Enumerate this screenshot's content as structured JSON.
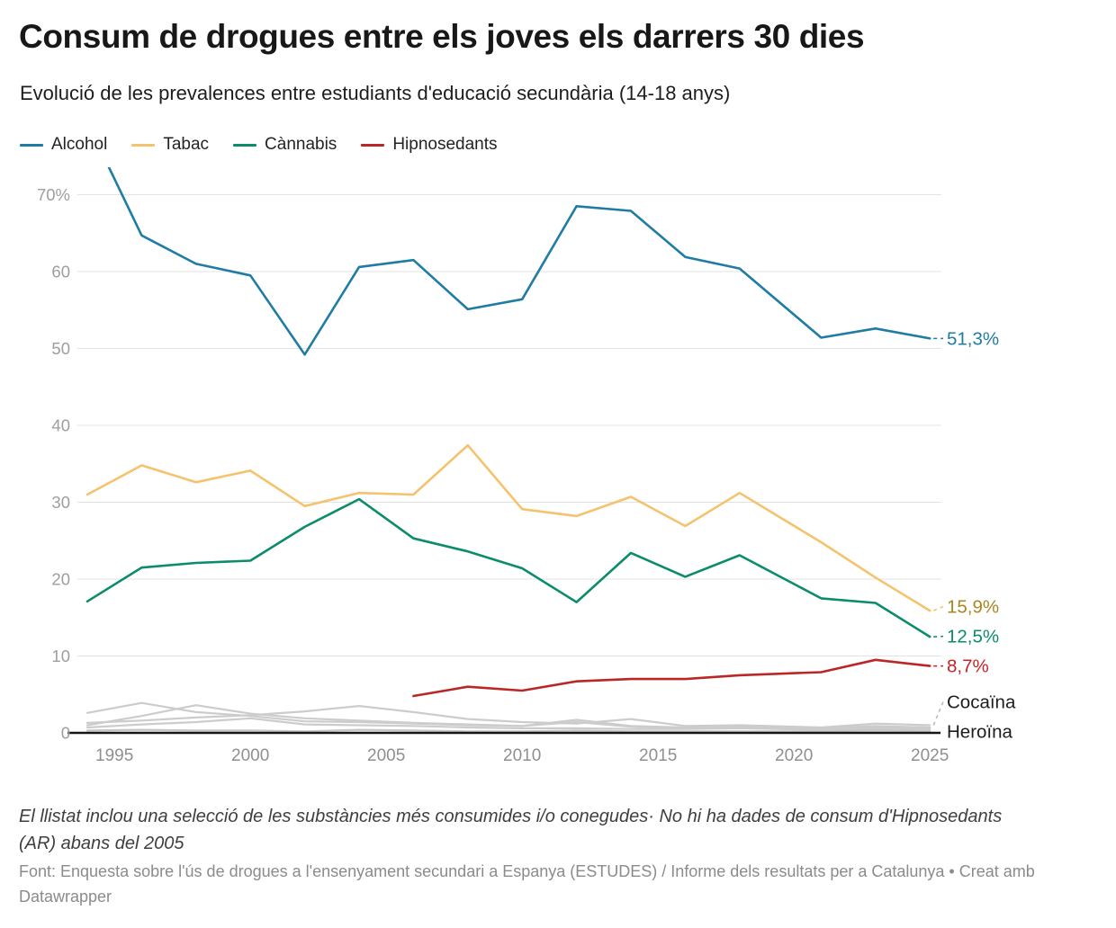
{
  "header": {
    "title": "Consum de drogues entre els joves els darrers 30 dies",
    "subtitle": "Evolució de les prevalences entre estudiants d'educació secundària (14-18 anys)"
  },
  "footer": {
    "note": "El llistat inclou una selecció de les substàncies més consumides i/o conegudes· No hi ha dades de consum d'Hipnosedants (AR) abans del 2005",
    "source_text": "Font: Enquesta sobre l'ús de drogues a l'ensenyament secundari a Espanya (ESTUDES) / Informe dels resultats per a Catalunya • ",
    "attribution": "Creat amb Datawrapper"
  },
  "colors": {
    "grid": "#e3e3e3",
    "axis": "#151515",
    "y_tick_label": "#9e9e9e",
    "x_tick_label": "#8f8f8f"
  },
  "chart_data": {
    "type": "line",
    "x": [
      1994,
      1996,
      1998,
      2000,
      2002,
      2004,
      2006,
      2008,
      2010,
      2012,
      2014,
      2016,
      2018,
      2021,
      2023,
      2025
    ],
    "x_ticks": [
      "1995",
      "2000",
      "2005",
      "2010",
      "2015",
      "2020",
      "2025"
    ],
    "y_ticks": [
      {
        "v": 0,
        "label": "0"
      },
      {
        "v": 10,
        "label": "10"
      },
      {
        "v": 20,
        "label": "20"
      },
      {
        "v": 30,
        "label": "30"
      },
      {
        "v": 40,
        "label": "40"
      },
      {
        "v": 50,
        "label": "50"
      },
      {
        "v": 60,
        "label": "60"
      },
      {
        "v": 70,
        "label": "70%"
      }
    ],
    "ylim": [
      0,
      73.5
    ],
    "grid": "horizontal",
    "legend_position": "top-left",
    "series": [
      {
        "name": "Alcohol",
        "color": "#1f7ca4",
        "label_color": "#1f7ca4",
        "end_label": "51,3%",
        "in_legend": true,
        "dash_to_label": true,
        "values": [
          79.4,
          64.7,
          61.0,
          59.5,
          49.2,
          60.6,
          61.5,
          55.1,
          56.4,
          68.5,
          67.9,
          61.9,
          60.4,
          51.4,
          52.6,
          51.3
        ]
      },
      {
        "name": "Tabac",
        "color": "#f5c26d",
        "label_color": "#a9861f",
        "end_label": "15,9%",
        "in_legend": true,
        "dash_to_label": true,
        "values": [
          31.0,
          34.8,
          32.6,
          34.1,
          29.5,
          31.2,
          31.0,
          37.4,
          29.1,
          28.2,
          30.7,
          26.9,
          31.2,
          24.8,
          20.2,
          15.9
        ]
      },
      {
        "name": "Cànnabis",
        "color": "#0b8c6a",
        "label_color": "#0b8c6a",
        "end_label": "12,5%",
        "in_legend": true,
        "dash_to_label": true,
        "values": [
          17.1,
          21.5,
          22.1,
          22.4,
          26.8,
          30.4,
          25.3,
          23.6,
          21.4,
          17.0,
          23.4,
          20.3,
          23.1,
          17.5,
          16.9,
          12.5
        ]
      },
      {
        "name": "Hipnosedants",
        "color": "#bb2727",
        "label_color": "#cb2128",
        "end_label": "8,7%",
        "in_legend": true,
        "dash_to_label": true,
        "values": [
          null,
          null,
          null,
          null,
          null,
          null,
          4.8,
          6.0,
          5.5,
          6.7,
          7.0,
          7.0,
          7.5,
          7.9,
          9.5,
          8.7
        ]
      },
      {
        "name": "Cocaïna",
        "color": "#cccccc",
        "label_color": "#1d1d1d",
        "end_label": "Cocaïna",
        "dash_to_label": true,
        "dash_color": "#bbbbbb",
        "values": [
          1.3,
          1.6,
          2.0,
          2.3,
          2.8,
          3.5,
          2.7,
          1.8,
          1.4,
          1.2,
          1.8,
          0.9,
          1.0,
          0.7,
          1.2,
          1.0
        ]
      },
      {
        "name": "",
        "color": "#cccccc",
        "values": [
          2.6,
          3.9,
          2.7,
          2.2,
          1.5,
          1.4,
          1.2,
          1.0,
          0.9,
          1.4,
          0.8,
          0.6,
          0.7,
          0.5,
          0.7,
          0.6
        ]
      },
      {
        "name": "",
        "color": "#cccccc",
        "values": [
          1.0,
          2.2,
          3.6,
          2.5,
          1.9,
          1.6,
          1.3,
          1.1,
          0.9,
          1.7,
          0.9,
          0.7,
          0.8,
          0.6,
          0.9,
          0.7
        ]
      },
      {
        "name": "",
        "color": "#cccccc",
        "values": [
          0.7,
          1.1,
          1.4,
          1.9,
          1.1,
          1.0,
          0.9,
          0.7,
          0.6,
          0.6,
          0.5,
          0.5,
          0.6,
          0.4,
          0.5,
          0.4
        ]
      },
      {
        "name": "Heroïna",
        "color": "#c6c6c6",
        "label_color": "#1d1d1d",
        "end_label": "Heroïna",
        "dash_to_label": false,
        "values": [
          0.3,
          0.4,
          0.3,
          0.3,
          0.2,
          0.4,
          0.3,
          0.2,
          0.2,
          0.3,
          0.2,
          0.2,
          0.2,
          0.2,
          0.3,
          0.2
        ]
      }
    ]
  }
}
